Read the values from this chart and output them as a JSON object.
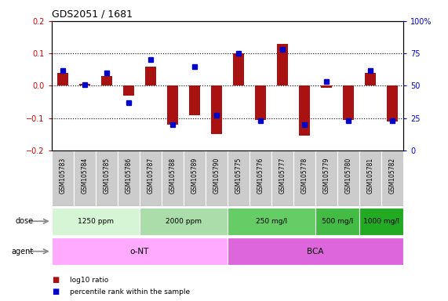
{
  "title": "GDS2051 / 1681",
  "samples": [
    "GSM105783",
    "GSM105784",
    "GSM105785",
    "GSM105786",
    "GSM105787",
    "GSM105788",
    "GSM105789",
    "GSM105790",
    "GSM105775",
    "GSM105776",
    "GSM105777",
    "GSM105778",
    "GSM105779",
    "GSM105780",
    "GSM105781",
    "GSM105782"
  ],
  "log10_ratio": [
    0.04,
    0.005,
    0.03,
    -0.03,
    0.06,
    -0.12,
    -0.09,
    -0.15,
    0.1,
    -0.105,
    0.13,
    -0.155,
    -0.005,
    -0.105,
    0.04,
    -0.11
  ],
  "percentile": [
    62,
    51,
    60,
    37,
    70,
    20,
    65,
    27,
    75,
    23,
    78,
    20,
    53,
    23,
    62,
    23
  ],
  "dose_groups": [
    {
      "label": "1250 ppm",
      "start": 0,
      "end": 4,
      "color": "#d5f5d5"
    },
    {
      "label": "2000 ppm",
      "start": 4,
      "end": 8,
      "color": "#aaddaa"
    },
    {
      "label": "250 mg/l",
      "start": 8,
      "end": 12,
      "color": "#66cc66"
    },
    {
      "label": "500 mg/l",
      "start": 12,
      "end": 14,
      "color": "#44bb44"
    },
    {
      "label": "1000 mg/l",
      "start": 14,
      "end": 16,
      "color": "#22aa22"
    }
  ],
  "agent_groups": [
    {
      "label": "o-NT",
      "start": 0,
      "end": 8,
      "color": "#ffaaff"
    },
    {
      "label": "BCA",
      "start": 8,
      "end": 16,
      "color": "#dd66dd"
    }
  ],
  "bar_color": "#aa1111",
  "dot_color": "#0000cc",
  "ylim": [
    -0.2,
    0.2
  ],
  "y2lim": [
    0,
    100
  ],
  "yticks": [
    -0.2,
    -0.1,
    0.0,
    0.1,
    0.2
  ],
  "y2ticks": [
    0,
    25,
    50,
    75,
    100
  ],
  "y2tick_labels": [
    "0",
    "25",
    "50",
    "75",
    "100%"
  ],
  "bg_color": "#ffffff",
  "label_bg": "#cccccc"
}
